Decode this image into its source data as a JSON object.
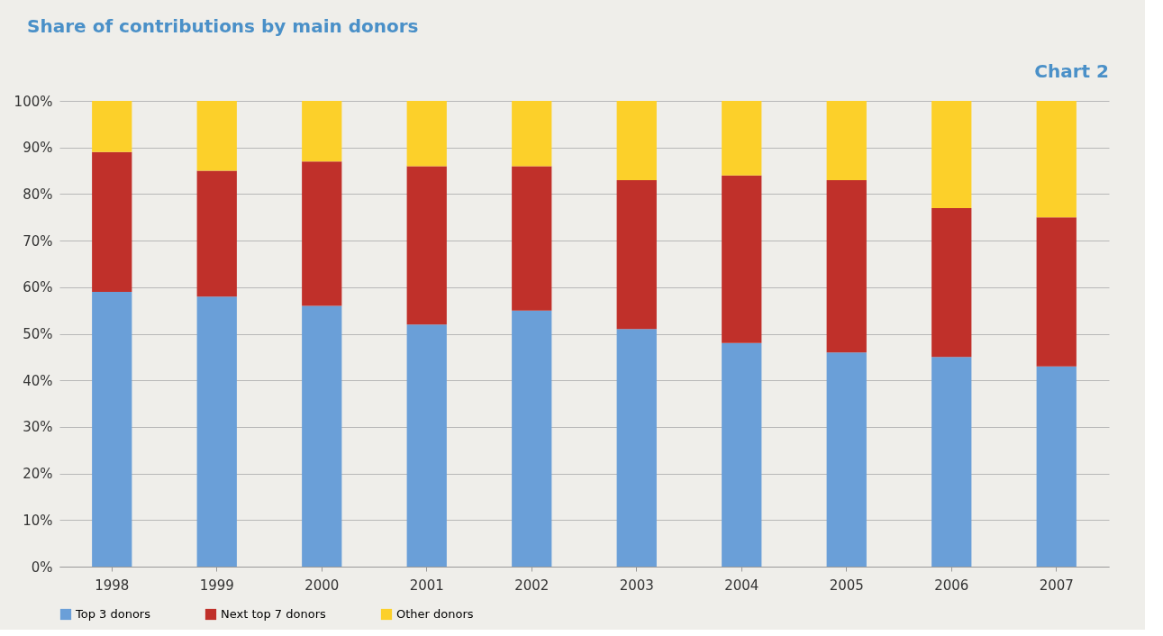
{
  "chart_data": {
    "type": "bar",
    "title": "Share of contributions by main donors",
    "annotations": [
      "Chart 2"
    ],
    "categories": [
      "1998",
      "1999",
      "2000",
      "2001",
      "2002",
      "2003",
      "2004",
      "2005",
      "2006",
      "2007"
    ],
    "series": [
      {
        "name": "Top 3 donors",
        "color": "#6a9fd8",
        "values": [
          59,
          58,
          56,
          52,
          55,
          51,
          48,
          46,
          45,
          43
        ]
      },
      {
        "name": "Next top 7 donors",
        "color": "#c0302a",
        "values": [
          30,
          27,
          31,
          34,
          31,
          32,
          36,
          37,
          32,
          32
        ]
      },
      {
        "name": "Other donors",
        "color": "#fcd02a",
        "values": [
          11,
          15,
          13,
          14,
          14,
          17,
          16,
          17,
          23,
          25
        ]
      }
    ],
    "stacked": true,
    "ylim": [
      0,
      100
    ],
    "yticks": [
      {
        "value": 0,
        "label": "0%"
      },
      {
        "value": 10,
        "label": "10%"
      },
      {
        "value": 20,
        "label": "20%"
      },
      {
        "value": 30,
        "label": "30%"
      },
      {
        "value": 40,
        "label": "40%"
      },
      {
        "value": 50,
        "label": "50%"
      },
      {
        "value": 60,
        "label": "60%"
      },
      {
        "value": 70,
        "label": "70%"
      },
      {
        "value": 80,
        "label": "80%"
      },
      {
        "value": 90,
        "label": "90%"
      },
      {
        "value": 100,
        "label": "100%"
      }
    ],
    "grid": "y",
    "legend": "bottom"
  }
}
